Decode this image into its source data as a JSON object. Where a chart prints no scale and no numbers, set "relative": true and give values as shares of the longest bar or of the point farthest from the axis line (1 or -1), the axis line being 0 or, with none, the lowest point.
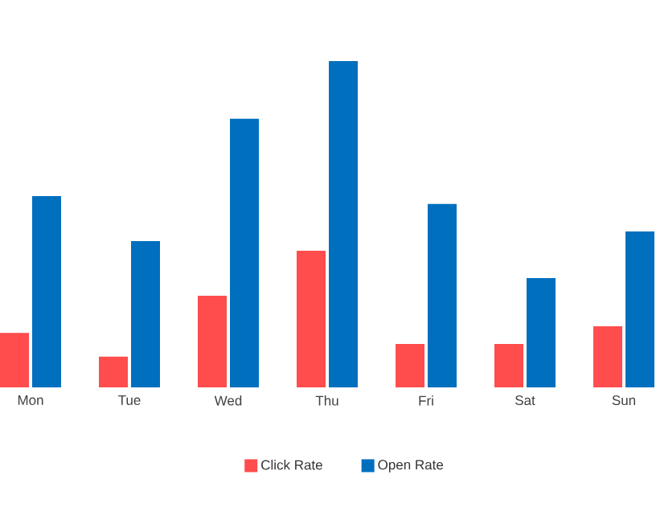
{
  "chart_data": {
    "type": "bar",
    "relative": true,
    "legend": "bottom",
    "categories": [
      "Mon",
      "Tue",
      "Wed",
      "Thu",
      "Fri",
      "Sat",
      "Sun"
    ],
    "series": [
      {
        "name": "Open Rate",
        "color": "#006fbe",
        "values": [
          0.586,
          0.448,
          0.823,
          1,
          0.562,
          0.335,
          0.478
        ]
      },
      {
        "name": "Click Rate",
        "color": "#ff4c4c",
        "values": [
          0.167,
          0.094,
          0.281,
          0.419,
          0.133,
          0.133,
          0.187
        ]
      }
    ]
  }
}
